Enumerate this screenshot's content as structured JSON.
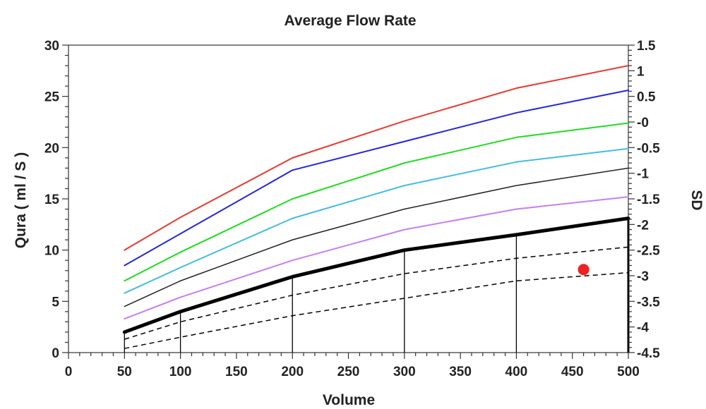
{
  "chart_data": {
    "type": "line",
    "title": "Average Flow Rate",
    "xlabel": "Volume",
    "ylabel": "Qura ( ml / S )",
    "y2label": "SD",
    "xlim": [
      0,
      500
    ],
    "ylim": [
      0,
      30
    ],
    "y2lim": [
      -4.5,
      1.5
    ],
    "x_ticks": [
      "0",
      "50",
      "100",
      "150",
      "200",
      "250",
      "300",
      "350",
      "400",
      "450",
      "500"
    ],
    "y_ticks": [
      "0",
      "5",
      "10",
      "15",
      "20",
      "25",
      "30"
    ],
    "y2_ticks": [
      "-4.5",
      "-4",
      "-3.5",
      "-3",
      "-2.5",
      "-2",
      "-1.5",
      "-1",
      "-0.5",
      "-0",
      "0.5",
      "1",
      "1.5"
    ],
    "grid": false,
    "series": [
      {
        "color": "#e8392e",
        "style": "solid",
        "width": 2,
        "points": [
          [
            50,
            10.0
          ],
          [
            100,
            13.2
          ],
          [
            200,
            19.0
          ],
          [
            300,
            22.6
          ],
          [
            400,
            25.8
          ],
          [
            500,
            28.0
          ]
        ]
      },
      {
        "color": "#2424e0",
        "style": "solid",
        "width": 2,
        "points": [
          [
            50,
            8.5
          ],
          [
            100,
            11.6
          ],
          [
            200,
            17.8
          ],
          [
            300,
            20.6
          ],
          [
            400,
            23.4
          ],
          [
            500,
            25.6
          ]
        ]
      },
      {
        "color": "#1fdc1f",
        "style": "solid",
        "width": 2,
        "points": [
          [
            50,
            7.0
          ],
          [
            100,
            9.8
          ],
          [
            200,
            15.0
          ],
          [
            300,
            18.5
          ],
          [
            400,
            21.0
          ],
          [
            500,
            22.4
          ]
        ]
      },
      {
        "color": "#44bce0",
        "style": "solid",
        "width": 2,
        "points": [
          [
            50,
            5.8
          ],
          [
            100,
            8.3
          ],
          [
            200,
            13.1
          ],
          [
            300,
            16.3
          ],
          [
            400,
            18.6
          ],
          [
            500,
            19.9
          ]
        ]
      },
      {
        "color": "#222222",
        "style": "solid",
        "width": 1.5,
        "points": [
          [
            50,
            4.5
          ],
          [
            100,
            7.0
          ],
          [
            200,
            11.0
          ],
          [
            300,
            14.0
          ],
          [
            400,
            16.3
          ],
          [
            500,
            18.0
          ]
        ]
      },
      {
        "color": "#c77ff0",
        "style": "solid",
        "width": 2,
        "points": [
          [
            50,
            3.3
          ],
          [
            100,
            5.4
          ],
          [
            200,
            9.0
          ],
          [
            300,
            12.0
          ],
          [
            400,
            14.0
          ],
          [
            500,
            15.2
          ]
        ]
      },
      {
        "color": "#000000",
        "style": "solid",
        "width": 5,
        "points": [
          [
            50,
            2.0
          ],
          [
            100,
            4.0
          ],
          [
            200,
            7.4
          ],
          [
            300,
            10.0
          ],
          [
            400,
            11.5
          ],
          [
            500,
            13.1
          ]
        ]
      },
      {
        "color": "#000000",
        "style": "dashed",
        "width": 1.5,
        "points": [
          [
            50,
            1.3
          ],
          [
            100,
            3.0
          ],
          [
            200,
            5.6
          ],
          [
            300,
            7.7
          ],
          [
            400,
            9.2
          ],
          [
            500,
            10.3
          ]
        ]
      },
      {
        "color": "#000000",
        "style": "dashed",
        "width": 1.5,
        "points": [
          [
            50,
            0.4
          ],
          [
            100,
            1.5
          ],
          [
            200,
            3.6
          ],
          [
            300,
            5.3
          ],
          [
            400,
            7.0
          ],
          [
            500,
            7.8
          ]
        ]
      }
    ],
    "vertical_lines": [
      {
        "x": 50,
        "y_top": 2.0
      },
      {
        "x": 100,
        "y_top": 4.0
      },
      {
        "x": 200,
        "y_top": 7.4
      },
      {
        "x": 300,
        "y_top": 10.0
      },
      {
        "x": 400,
        "y_top": 11.5
      },
      {
        "x": 500,
        "y_top": 13.1
      }
    ],
    "markers": [
      {
        "x": 460,
        "y": 8.1,
        "color": "#ee2222"
      }
    ]
  }
}
